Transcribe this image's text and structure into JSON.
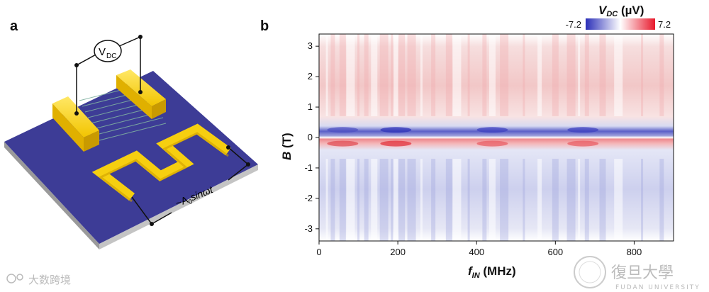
{
  "panels": {
    "a": "a",
    "b": "b"
  },
  "device": {
    "voltmeter_label": "V",
    "voltmeter_sub": "DC",
    "source_label": "~A",
    "source_sub": "0",
    "source_tail": "sinωt"
  },
  "colorbar": {
    "title_main": "V",
    "title_sub": "DC",
    "title_unit": " (µV)",
    "min_label": "-7.2",
    "max_label": "7.2",
    "colors": {
      "negative": "#2b2fb8",
      "zero": "#ffffff",
      "positive": "#e8192c"
    }
  },
  "chart_data": {
    "type": "heatmap",
    "xlabel_main": "f",
    "xlabel_sub": "IN",
    "xlabel_unit": " (MHz)",
    "ylabel_main": "B",
    "ylabel_unit": " (T)",
    "xlim": [
      0,
      900
    ],
    "ylim": [
      -3.4,
      3.4
    ],
    "x_ticks": [
      {
        "value": 0,
        "label": "0"
      },
      {
        "value": 200,
        "label": "200"
      },
      {
        "value": 400,
        "label": "400"
      },
      {
        "value": 600,
        "label": "600"
      },
      {
        "value": 800,
        "label": "800"
      }
    ],
    "y_ticks": [
      {
        "value": 3,
        "label": "3"
      },
      {
        "value": 2,
        "label": "2"
      },
      {
        "value": 1,
        "label": "1"
      },
      {
        "value": 0,
        "label": "0"
      },
      {
        "value": -1,
        "label": "-1"
      },
      {
        "value": -2,
        "label": "-2"
      },
      {
        "value": -3,
        "label": "-3"
      }
    ],
    "zlim": [
      -7.2,
      7.2
    ],
    "description_regions": [
      {
        "b_range": [
          0.8,
          3.4
        ],
        "f_range": [
          0,
          900
        ],
        "sign": "positive",
        "peak_uV": 3
      },
      {
        "b_range": [
          0.05,
          0.6
        ],
        "f_range": [
          0,
          900
        ],
        "sign": "negative",
        "peak_uV": -6
      },
      {
        "b_range": [
          -0.6,
          -0.05
        ],
        "f_range": [
          0,
          900
        ],
        "sign": "positive",
        "peak_uV": 6
      },
      {
        "b_range": [
          -3.4,
          -0.8
        ],
        "f_range": [
          0,
          900
        ],
        "sign": "negative",
        "peak_uV": -3
      }
    ]
  },
  "watermarks": {
    "left_text": "大数跨境",
    "right_text": "復旦大學",
    "right_sub": "FUDAN UNIVERSITY"
  }
}
